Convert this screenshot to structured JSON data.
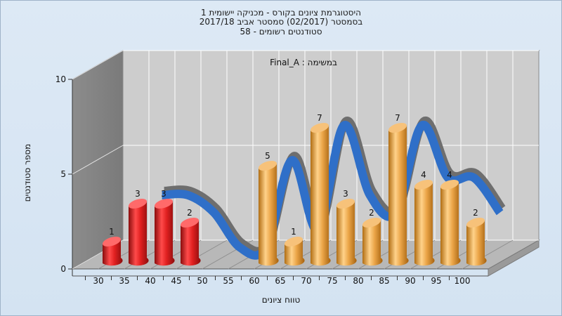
{
  "title_lines": [
    "היסטוגרמת ציונים בקורס - מכניקה יישומית 1",
    "בסמסטר  (02/2017)  סמסטר אביב 2017/18",
    "סטודנטים רשומים - 58"
  ],
  "chart_data": {
    "type": "bar",
    "annotation": "במשימה : Final_A",
    "xlabel": "טווח ציונים",
    "ylabel": "מספר סטודנטים",
    "ylim": [
      0,
      10
    ],
    "yticks": [
      0,
      5,
      10
    ],
    "grid": true,
    "categories": [
      "30",
      "35",
      "40",
      "45",
      "50",
      "55",
      "60",
      "65",
      "70",
      "75",
      "80",
      "85",
      "90",
      "95",
      "100"
    ],
    "values": [
      1,
      3,
      3,
      2,
      0,
      0,
      5,
      1,
      7,
      3,
      2,
      7,
      4,
      4,
      2
    ],
    "bar_colors": [
      "#d41e1e",
      "#d41e1e",
      "#d41e1e",
      "#d41e1e",
      "#d41e1e",
      "#d41e1e",
      "#e3a445",
      "#e3a445",
      "#e3a445",
      "#e3a445",
      "#e3a445",
      "#e3a445",
      "#e3a445",
      "#e3a445",
      "#e3a445"
    ],
    "curve_color": "#2f6fc8",
    "curve_back_color": "#6e6e6e",
    "wall_color": "#8a8a8a",
    "plot_color": "#cfcfcf"
  }
}
